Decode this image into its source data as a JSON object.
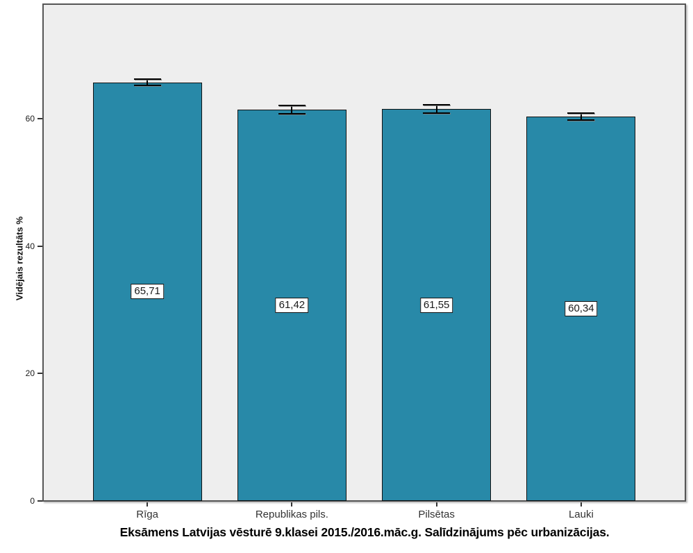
{
  "chart_data": {
    "type": "bar",
    "title": "Eksāmens Latvijas vēsturē 9.klasei 2015./2016.māc.g. Salīdzinājums pēc urbanizācijas.",
    "xlabel": "",
    "ylabel": "Vidējais rezultāts %",
    "categories": [
      "Rīga",
      "Republikas pils.",
      "Pilsētas",
      "Lauki"
    ],
    "values": [
      65.71,
      61.42,
      61.55,
      60.34
    ],
    "value_labels": [
      "65,71",
      "61,42",
      "61,55",
      "60,34"
    ],
    "error_bars": [
      0.5,
      0.65,
      0.6,
      0.55
    ],
    "ylim": [
      0,
      78
    ],
    "yticks": [
      0,
      20,
      40,
      60
    ],
    "ytick_labels": [
      "0",
      "20",
      "40",
      "60"
    ],
    "grid": false,
    "legend": "none",
    "colors": {
      "bar_fill": "#2889a8",
      "bar_border": "#111111",
      "plot_background": "#eeeeee",
      "plot_border": "#555555",
      "error_bar": "#000000",
      "value_label_background": "#ffffff",
      "page_background": "#ffffff"
    }
  }
}
